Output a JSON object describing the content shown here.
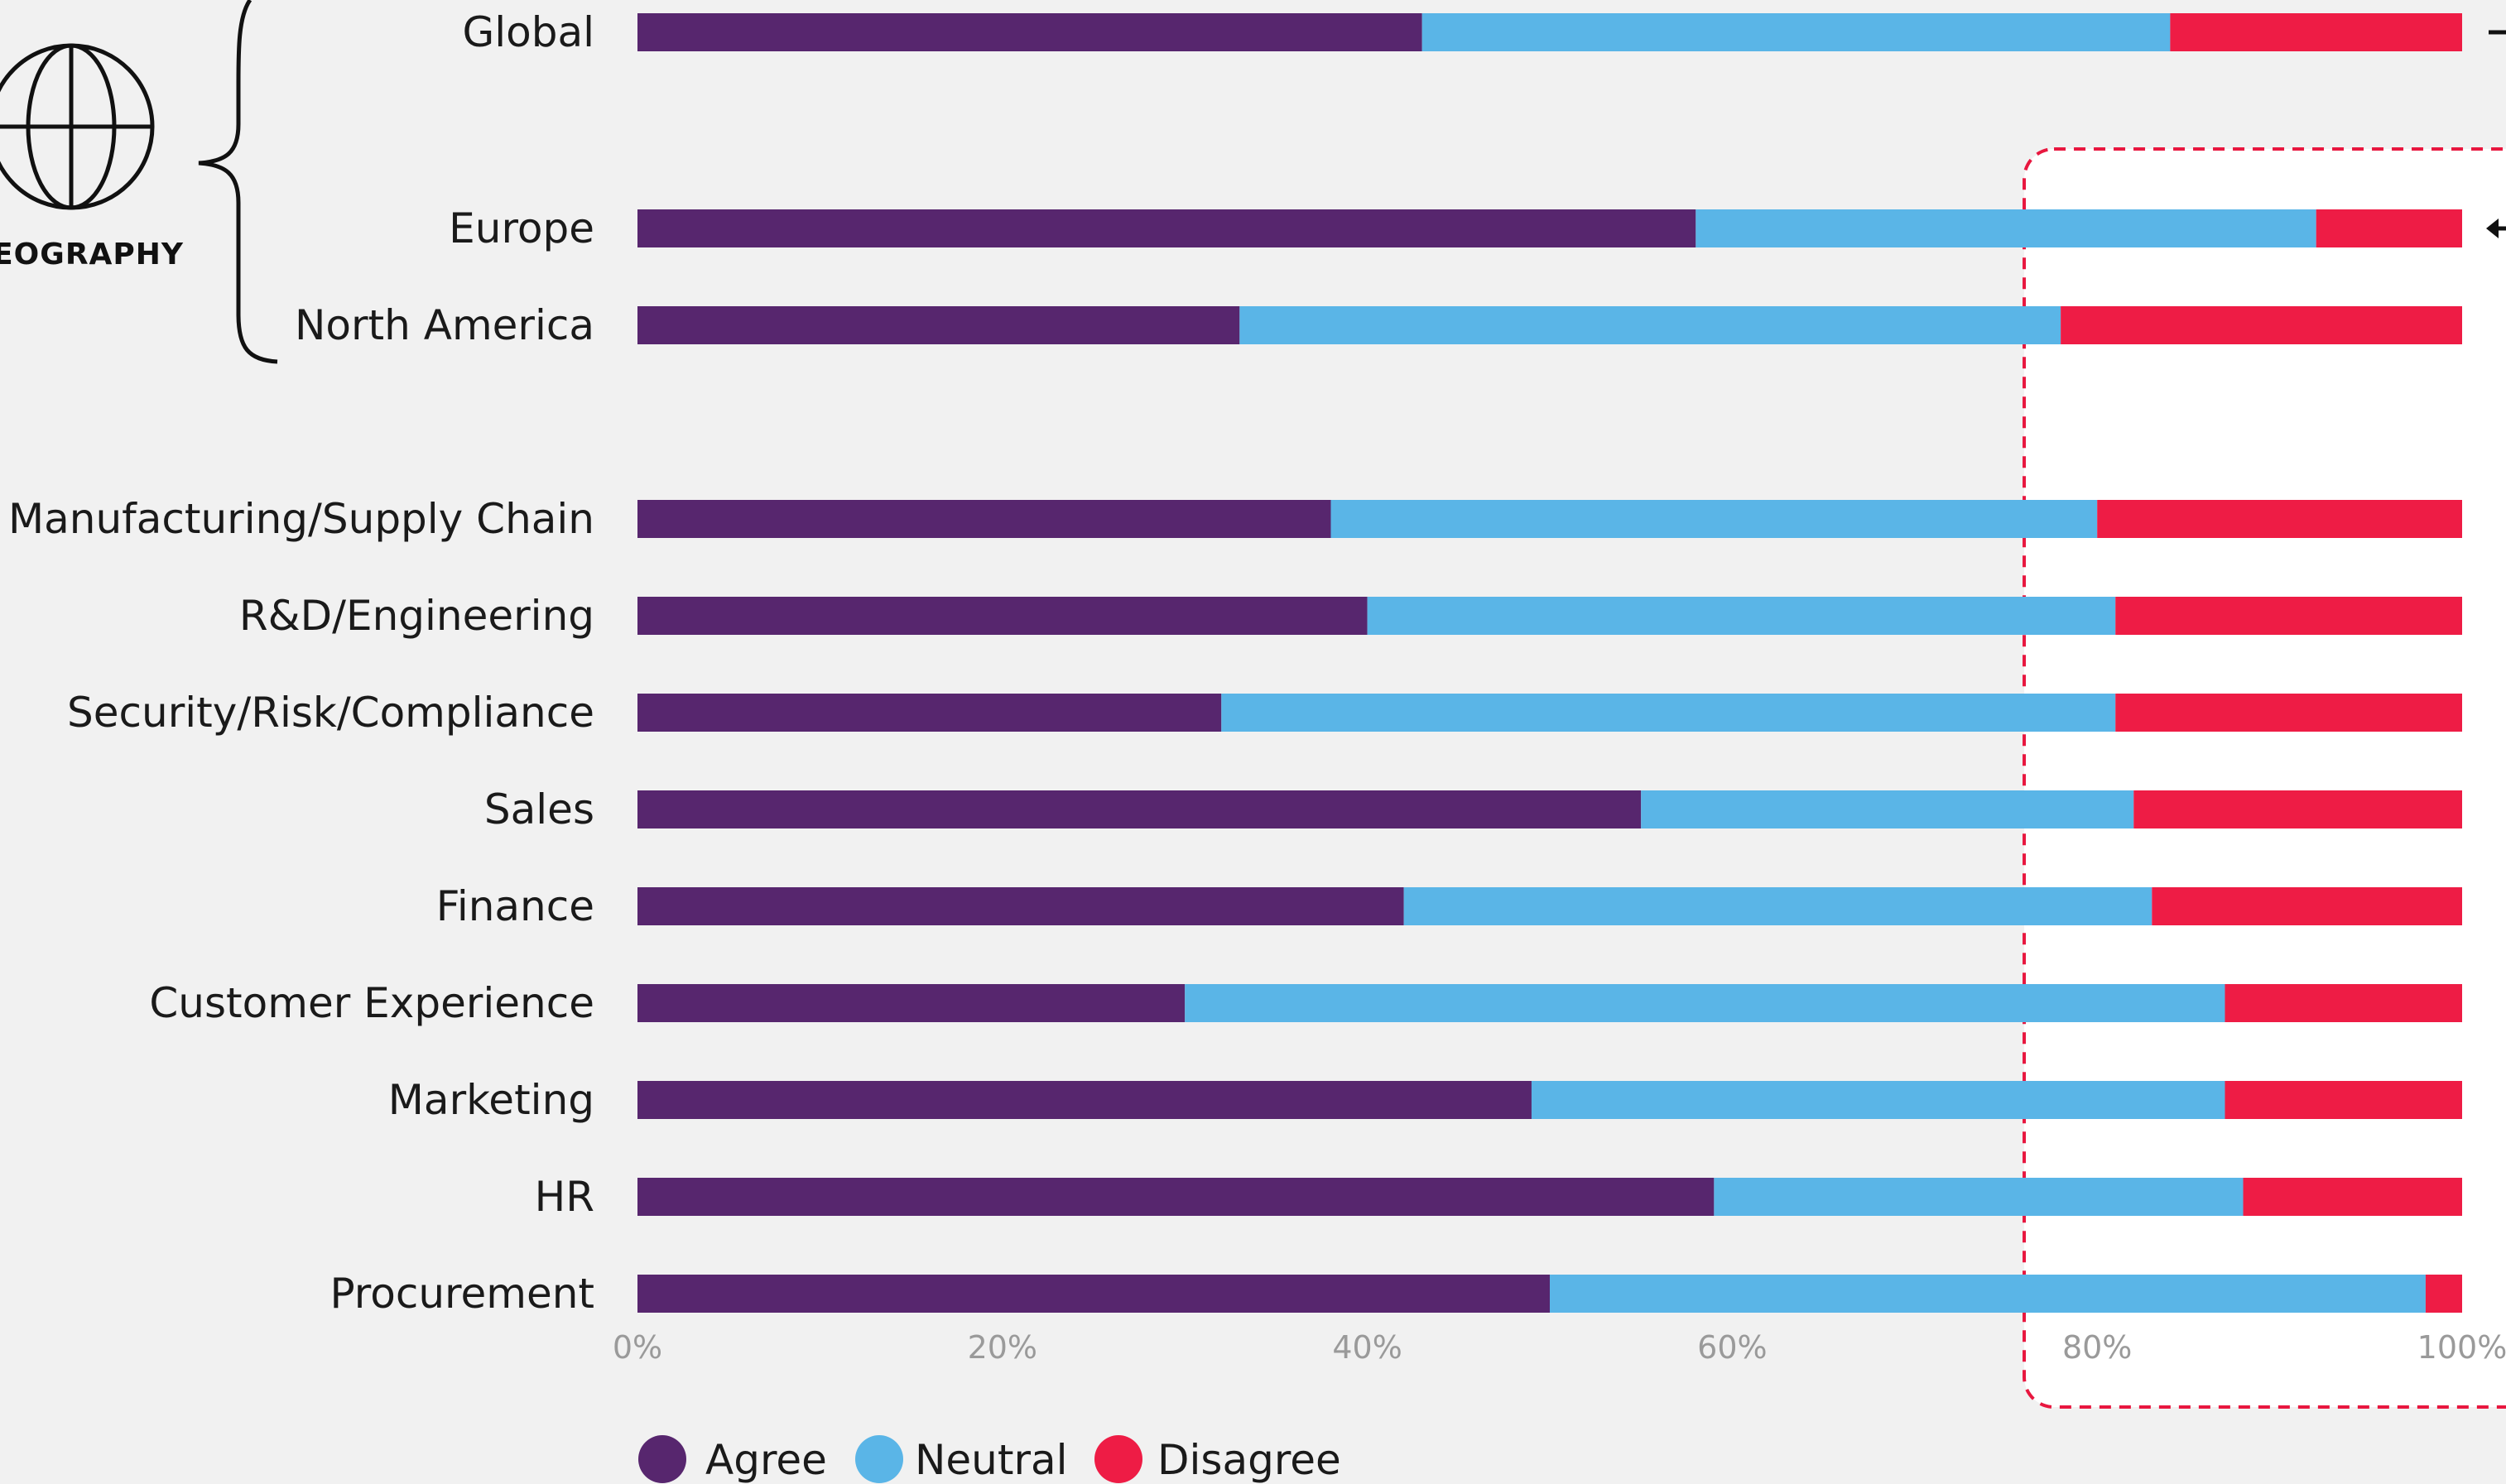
{
  "chart_data": {
    "type": "bar",
    "orientation": "horizontal",
    "stacked": true,
    "categories": [
      "Global",
      "Europe",
      "North America",
      "Manufacturing/Supply Chain",
      "R&D/Engineering",
      "Security/Risk/Compliance",
      "Sales",
      "Finance",
      "Customer Experience",
      "Marketing",
      "HR",
      "Procurement"
    ],
    "series": [
      {
        "name": "Agree",
        "color": "#57266e",
        "values": [
          43,
          58,
          33,
          38,
          40,
          32,
          55,
          42,
          30,
          49,
          59,
          50
        ]
      },
      {
        "name": "Neutral",
        "color": "#5ab5e7",
        "values": [
          41,
          34,
          45,
          42,
          41,
          49,
          27,
          41,
          57,
          38,
          29,
          48
        ]
      },
      {
        "name": "Disagree",
        "color": "#ee1c45",
        "values": [
          16,
          8,
          22,
          20,
          19,
          19,
          18,
          17,
          13,
          13,
          12,
          2
        ]
      }
    ],
    "xlim": [
      0,
      100
    ],
    "x_ticks": [
      "0%",
      "20%",
      "40%",
      "60%",
      "80%",
      "100%"
    ],
    "legend_position": "bottom-left",
    "grid": false,
    "group_label": "EOGRAPHY",
    "highlight_region": {
      "from": 76,
      "to": 100,
      "style": "dashed",
      "color": "#e8173f"
    }
  }
}
